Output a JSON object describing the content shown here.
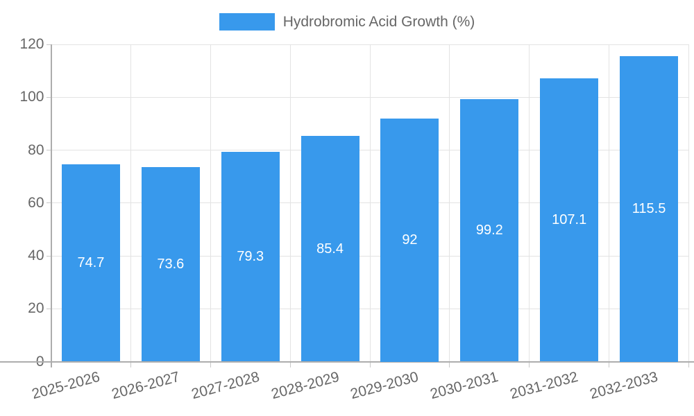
{
  "legend": {
    "label": "Hydrobromic Acid Growth (%)"
  },
  "colors": {
    "bar": "#3899EC",
    "grid": "#E3E3E3",
    "axis": "#ADADAD",
    "tick": "#C9C9C9",
    "axis_text": "#666666",
    "value_text": "#FFFFFF",
    "background": "#FFFFFF"
  },
  "chart_data": {
    "type": "bar",
    "title": "Hydrobromic Acid Growth (%)",
    "categories": [
      "2025-2026",
      "2026-2027",
      "2027-2028",
      "2028-2029",
      "2029-2030",
      "2030-2031",
      "2031-2032",
      "2032-2033"
    ],
    "values": [
      74.7,
      73.6,
      79.3,
      85.4,
      92,
      99.2,
      107.1,
      115.5
    ],
    "value_labels": [
      "74.7",
      "73.6",
      "79.3",
      "85.4",
      "92",
      "99.2",
      "107.1",
      "115.5"
    ],
    "xlabel": "",
    "ylabel": "",
    "ylim": [
      0,
      120
    ],
    "ytick_step": 20,
    "ytick_labels": [
      "0",
      "20",
      "40",
      "60",
      "80",
      "100",
      "120"
    ],
    "grid": true,
    "legend_position": "top",
    "x_label_rotation_deg": -15
  }
}
